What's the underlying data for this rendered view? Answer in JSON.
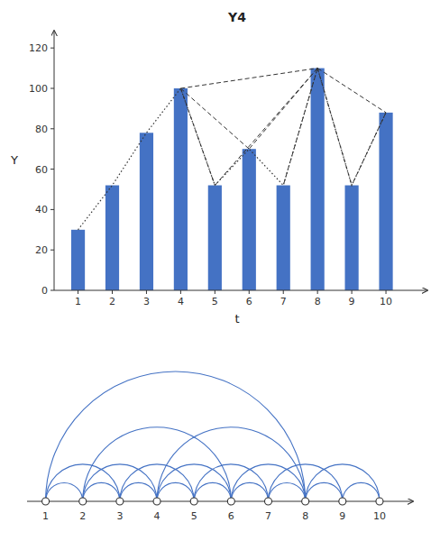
{
  "chart_data": [
    {
      "type": "bar",
      "title": "Y4",
      "x_label": "t",
      "y_label": "Y",
      "x": [
        1,
        2,
        3,
        4,
        5,
        6,
        7,
        8,
        9,
        10
      ],
      "values": [
        30,
        52,
        78,
        100,
        52,
        70,
        52,
        110,
        52,
        88
      ],
      "color": "#4472c4",
      "dotted_sequence": [
        1,
        2,
        3,
        4,
        5,
        6,
        7,
        8,
        9,
        10
      ],
      "dashed_connections": [
        [
          4,
          100,
          5,
          52
        ],
        [
          4,
          100,
          6,
          70
        ],
        [
          4,
          100,
          8,
          110
        ],
        [
          8,
          110,
          5,
          52
        ],
        [
          8,
          110,
          6,
          70
        ],
        [
          8,
          110,
          7,
          52
        ],
        [
          8,
          110,
          9,
          52
        ],
        [
          8,
          110,
          10,
          88
        ],
        [
          10,
          88,
          9,
          52
        ]
      ],
      "xlim": [
        0.3,
        11
      ],
      "xticks": [
        1,
        2,
        3,
        4,
        5,
        6,
        7,
        8,
        9,
        10
      ],
      "ylim": [
        0,
        125
      ],
      "yticks": [
        0,
        20,
        40,
        60,
        80,
        100,
        120
      ],
      "grid": false
    },
    {
      "type": "network",
      "nodes": [
        1,
        2,
        3,
        4,
        5,
        6,
        7,
        8,
        9,
        10
      ],
      "edges": [
        [
          1,
          2
        ],
        [
          2,
          3
        ],
        [
          3,
          4
        ],
        [
          4,
          5
        ],
        [
          5,
          6
        ],
        [
          6,
          7
        ],
        [
          7,
          8
        ],
        [
          8,
          9
        ],
        [
          9,
          10
        ],
        [
          1,
          3
        ],
        [
          2,
          4
        ],
        [
          3,
          5
        ],
        [
          4,
          6
        ],
        [
          5,
          7
        ],
        [
          6,
          8
        ],
        [
          7,
          9
        ],
        [
          8,
          10
        ],
        [
          2,
          6
        ],
        [
          4,
          8
        ],
        [
          1,
          8
        ]
      ],
      "xlim": [
        0.5,
        10.9
      ]
    }
  ]
}
